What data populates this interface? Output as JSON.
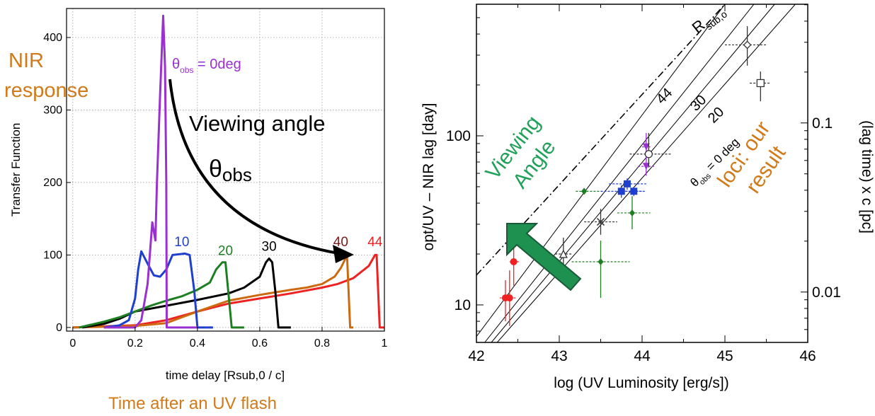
{
  "chart_data": [
    {
      "type": "line",
      "ylabel": "Transfer Function",
      "xlabel": "time delay [Rsub,0 / c]",
      "xlim": [
        -0.02,
        1.0
      ],
      "ylim": [
        -5,
        440
      ],
      "xticks": [
        0,
        0.2,
        0.4,
        0.6,
        0.8,
        1
      ],
      "xtick_labels": [
        "0",
        "0.2",
        "0.4",
        "0.6",
        "0.8",
        "1"
      ],
      "yticks": [
        0,
        100,
        200,
        300,
        400
      ],
      "ytick_labels": [
        "0",
        "100",
        "200",
        "300",
        "400"
      ],
      "grid": true,
      "series": [
        {
          "name": "0deg",
          "color": "#9b30d0",
          "x": [
            0.1,
            0.2,
            0.22,
            0.24,
            0.255,
            0.265,
            0.27,
            0.28,
            0.29,
            0.296,
            0.3,
            0.3015,
            0.32,
            0.4
          ],
          "y": [
            0,
            0,
            10,
            60,
            145,
            120,
            200,
            320,
            430,
            360,
            200,
            0,
            0,
            0
          ]
        },
        {
          "name": "10",
          "color": "#1f3fcf",
          "x": [
            0.1,
            0.15,
            0.18,
            0.2,
            0.21,
            0.22,
            0.24,
            0.26,
            0.28,
            0.3,
            0.32,
            0.36,
            0.375,
            0.39,
            0.4,
            0.45
          ],
          "y": [
            0,
            3,
            10,
            40,
            80,
            105,
            88,
            72,
            70,
            80,
            100,
            102,
            100,
            50,
            0,
            0
          ]
        },
        {
          "name": "20",
          "color": "#1e7e22",
          "x": [
            0.02,
            0.06,
            0.1,
            0.15,
            0.2,
            0.25,
            0.3,
            0.35,
            0.4,
            0.44,
            0.46,
            0.48,
            0.49,
            0.5,
            0.51,
            0.55
          ],
          "y": [
            0,
            4,
            8,
            14,
            22,
            30,
            37,
            43,
            52,
            62,
            80,
            90,
            90,
            45,
            0,
            0
          ]
        },
        {
          "name": "30",
          "color": "#000000",
          "x": [
            0.03,
            0.1,
            0.15,
            0.2,
            0.3,
            0.4,
            0.5,
            0.55,
            0.6,
            0.62,
            0.63,
            0.64,
            0.65,
            0.66,
            0.7
          ],
          "y": [
            0,
            5,
            12,
            22,
            30,
            38,
            47,
            55,
            70,
            90,
            95,
            90,
            50,
            0,
            0
          ]
        },
        {
          "name": "40",
          "color": "#cc6a10",
          "x": [
            0.0,
            0.2,
            0.3,
            0.4,
            0.5,
            0.6,
            0.7,
            0.75,
            0.8,
            0.84,
            0.86,
            0.875,
            0.88,
            0.89,
            0.9
          ],
          "y": [
            0,
            2,
            6,
            22,
            37,
            45,
            52,
            55,
            60,
            70,
            82,
            95,
            100,
            0,
            0
          ]
        },
        {
          "name": "44",
          "color": "#ee2222",
          "x": [
            0.0,
            0.2,
            0.3,
            0.4,
            0.5,
            0.6,
            0.7,
            0.8,
            0.85,
            0.9,
            0.95,
            0.97,
            0.975,
            0.985,
            1.0
          ],
          "y": [
            0,
            3,
            10,
            22,
            33,
            40,
            47,
            55,
            60,
            68,
            85,
            100,
            100,
            0,
            0
          ]
        }
      ],
      "curve_labels": [
        {
          "text": "10",
          "x": 0.35,
          "y": 112,
          "color": "#1f3fcf"
        },
        {
          "text": "20",
          "x": 0.49,
          "y": 100,
          "color": "#1e7e22"
        },
        {
          "text": "30",
          "x": 0.63,
          "y": 106,
          "color": "#000000"
        },
        {
          "text": "40",
          "x": 0.86,
          "y": 112,
          "color": "#7a1a1a"
        },
        {
          "text": "44",
          "x": 0.97,
          "y": 112,
          "color": "#ee2222"
        }
      ]
    },
    {
      "type": "scatter",
      "xlabel": "log (UV Luminosity [erg/s])",
      "ylabel": "opt/UV – NIR lag [day]",
      "y2label": "(lag time) x c [pc]",
      "xscale": "linear",
      "yscale": "log",
      "xlim": [
        42,
        46
      ],
      "ylim": [
        6,
        600
      ],
      "xticks": [
        42,
        43,
        44,
        45,
        46
      ],
      "xtick_labels": [
        "42",
        "43",
        "44",
        "45",
        "46"
      ],
      "yticks": [
        10,
        100
      ],
      "ytick_labels": [
        "10",
        "100"
      ],
      "y2ticks_pc": [
        0.01,
        0.1
      ],
      "y2tick_labels": [
        "0.01",
        "0.1"
      ],
      "loci": [
        {
          "label": "θobs = 0 deg",
          "x0": 42.25,
          "y0": 6,
          "x1": 45.85,
          "y1": 600,
          "style": "solid"
        },
        {
          "label": "20",
          "x0": 42.18,
          "y0": 6,
          "x1": 45.6,
          "y1": 600,
          "style": "solid"
        },
        {
          "label": "30",
          "x0": 42.1,
          "y0": 6,
          "x1": 45.35,
          "y1": 600,
          "style": "solid"
        },
        {
          "label": "44",
          "x0": 42.0,
          "y0": 6.5,
          "x1": 45.0,
          "y1": 600,
          "style": "solid"
        },
        {
          "label": "Rsub,o",
          "x0": 42.0,
          "y0": 15,
          "x1": 45.0,
          "y1": 600,
          "style": "dashdot"
        }
      ],
      "points": [
        {
          "x": 42.35,
          "y": 11,
          "color": "#ee2222",
          "marker": "circle-filled",
          "yerr": [
            8,
            14
          ],
          "xerr": [
            42.28,
            42.45
          ]
        },
        {
          "x": 42.4,
          "y": 11,
          "color": "#ee2222",
          "marker": "circle-filled",
          "yerr": [
            7.5,
            16
          ],
          "xerr": [
            42.32,
            42.48
          ]
        },
        {
          "x": 42.45,
          "y": 18,
          "color": "#ee2222",
          "marker": "circle-filled",
          "yerr": [
            13,
            22
          ],
          "xerr": [
            42.4,
            42.52
          ]
        },
        {
          "x": 43.05,
          "y": 20,
          "color": "#333333",
          "marker": "triangle-open",
          "yerr": [
            15,
            25
          ],
          "xerr": [
            42.95,
            43.15
          ]
        },
        {
          "x": 43.3,
          "y": 47,
          "color": "#1e7e22",
          "marker": "diamond-filled",
          "yerr": [
            46,
            48
          ],
          "xerr": [
            43.2,
            43.5
          ]
        },
        {
          "x": 43.5,
          "y": 18,
          "color": "#1e7e22",
          "marker": "diamond-filled",
          "yerr": [
            11,
            24
          ],
          "xerr": [
            43.15,
            43.85
          ]
        },
        {
          "x": 43.5,
          "y": 31,
          "color": "#333333",
          "marker": "cross",
          "yerr": [
            26,
            37
          ],
          "xerr": [
            43.3,
            43.7
          ]
        },
        {
          "x": 43.75,
          "y": 47,
          "color": "#1f3fcf",
          "marker": "square-filled",
          "yerr": [
            43,
            51
          ],
          "xerr": [
            43.5,
            44.0
          ]
        },
        {
          "x": 43.82,
          "y": 52,
          "color": "#1f3fcf",
          "marker": "square-filled",
          "yerr": [
            48,
            56
          ],
          "xerr": [
            43.6,
            44.05
          ]
        },
        {
          "x": 43.9,
          "y": 47,
          "color": "#1f3fcf",
          "marker": "square-filled",
          "yerr": [
            44,
            50
          ],
          "xerr": [
            43.75,
            44.05
          ]
        },
        {
          "x": 43.88,
          "y": 35,
          "color": "#1e7e22",
          "marker": "diamond-filled",
          "yerr": [
            28,
            44
          ],
          "xerr": [
            43.7,
            44.1
          ]
        },
        {
          "x": 44.05,
          "y": 86,
          "color": "#9b30d0",
          "marker": "triangle-down-filled",
          "yerr": [
            75,
            98
          ],
          "xerr": [
            44.0,
            44.1
          ]
        },
        {
          "x": 44.05,
          "y": 66,
          "color": "#9b30d0",
          "marker": "triangle-down-filled",
          "yerr": [
            58,
            75
          ],
          "xerr": [
            43.95,
            44.15
          ]
        },
        {
          "x": 44.08,
          "y": 78,
          "color": "#333333",
          "marker": "circle-open",
          "yerr": [
            65,
            104
          ],
          "xerr": [
            43.85,
            44.35
          ]
        },
        {
          "x": 44.05,
          "y": 98,
          "color": "#9b30d0",
          "marker": "none",
          "yerr": [
            85,
            104
          ],
          "xerr": [
            44.05,
            44.05
          ]
        },
        {
          "x": 45.27,
          "y": 345,
          "color": "#333333",
          "marker": "diamond-open",
          "yerr": [
            260,
            445
          ],
          "xerr": [
            45.0,
            45.5
          ]
        },
        {
          "x": 45.43,
          "y": 205,
          "color": "#333333",
          "marker": "square-open",
          "yerr": [
            160,
            240
          ],
          "xerr": [
            45.3,
            45.55
          ]
        }
      ]
    }
  ],
  "annotations": {
    "nir_response": "NIR\nresponse",
    "theta_label": "θobs = 0deg",
    "viewing_angle_text": "Viewing angle",
    "theta_obs": "θobs",
    "time_after_flash": "Time after an UV flash",
    "viewing_angle_green": "Viewing\nAngle",
    "loci_our_result": "loci: our\nresult",
    "rsub_label": "Rsub,o",
    "locus_0": "θobs = 0 deg",
    "locus_20": "20",
    "locus_30": "30",
    "locus_44": "44"
  },
  "colors": {
    "orange_annotation": "#d07a1a",
    "green_annotation": "#21a05a",
    "arrow_fill": "#1e9150",
    "arrow_stroke": "#1a5a38"
  }
}
